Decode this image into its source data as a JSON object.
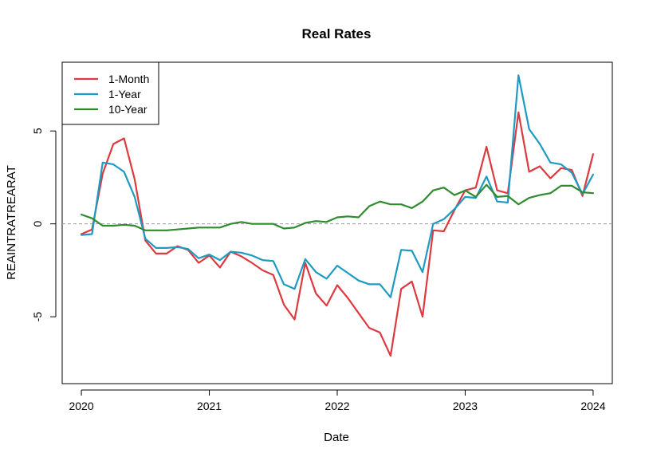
{
  "chart_data": {
    "type": "line",
    "title": "Real Rates",
    "xlabel": "Date",
    "ylabel": "REAINTRATREARAT",
    "xlim": [
      2019.85,
      2024.15
    ],
    "ylim": [
      -8.6,
      8.7
    ],
    "x_ticks": [
      {
        "value": 2020,
        "label": "2020"
      },
      {
        "value": 2021,
        "label": "2021"
      },
      {
        "value": 2022,
        "label": "2022"
      },
      {
        "value": 2023,
        "label": "2023"
      },
      {
        "value": 2024,
        "label": "2024"
      }
    ],
    "y_ticks": [
      {
        "value": -5,
        "label": "-5"
      },
      {
        "value": 0,
        "label": "0"
      },
      {
        "value": 5,
        "label": "5"
      }
    ],
    "reference_line": {
      "y": 0,
      "style": "dashed",
      "color": "#9a9a9a"
    },
    "legend": {
      "position": "top-left"
    },
    "grid": false,
    "x": [
      2020.0,
      2020.0833,
      2020.1667,
      2020.25,
      2020.3333,
      2020.4167,
      2020.5,
      2020.5833,
      2020.6667,
      2020.75,
      2020.8333,
      2020.9167,
      2021.0,
      2021.0833,
      2021.1667,
      2021.25,
      2021.3333,
      2021.4167,
      2021.5,
      2021.5833,
      2021.6667,
      2021.75,
      2021.8333,
      2021.9167,
      2022.0,
      2022.0833,
      2022.1667,
      2022.25,
      2022.3333,
      2022.4167,
      2022.5,
      2022.5833,
      2022.6667,
      2022.75,
      2022.8333,
      2022.9167,
      2023.0,
      2023.0833,
      2023.1667,
      2023.25,
      2023.3333,
      2023.4167,
      2023.5,
      2023.5833,
      2023.6667,
      2023.75,
      2023.8333,
      2023.9167,
      2024.0
    ],
    "series": [
      {
        "name": "1-Month",
        "color": "#dc3a3f",
        "values": [
          -0.55,
          -0.3,
          2.7,
          4.3,
          4.6,
          2.4,
          -0.9,
          -1.6,
          -1.6,
          -1.2,
          -1.4,
          -2.1,
          -1.7,
          -2.35,
          -1.5,
          -1.75,
          -2.1,
          -2.5,
          -2.75,
          -4.35,
          -5.15,
          -2.1,
          -3.75,
          -4.4,
          -3.3,
          -4.0,
          -4.8,
          -5.6,
          -5.85,
          -7.1,
          -3.5,
          -3.1,
          -5.0,
          -0.35,
          -0.4,
          0.75,
          1.8,
          1.95,
          4.15,
          1.8,
          1.65,
          6.0,
          2.8,
          3.1,
          2.45,
          3.0,
          2.9,
          1.5,
          3.75
        ]
      },
      {
        "name": "1-Year",
        "color": "#1e9ac2",
        "values": [
          -0.6,
          -0.55,
          3.3,
          3.2,
          2.8,
          1.45,
          -0.8,
          -1.3,
          -1.3,
          -1.25,
          -1.35,
          -1.85,
          -1.65,
          -1.95,
          -1.5,
          -1.55,
          -1.7,
          -1.95,
          -2.0,
          -3.25,
          -3.5,
          -1.9,
          -2.6,
          -2.95,
          -2.25,
          -2.65,
          -3.05,
          -3.25,
          -3.25,
          -3.95,
          -1.4,
          -1.45,
          -2.6,
          0.0,
          0.25,
          0.8,
          1.45,
          1.4,
          2.55,
          1.2,
          1.15,
          8.0,
          5.1,
          4.3,
          3.3,
          3.2,
          2.75,
          1.6,
          2.65
        ]
      },
      {
        "name": "10-Year",
        "color": "#2e8b2e",
        "values": [
          0.5,
          0.3,
          -0.1,
          -0.1,
          -0.05,
          -0.1,
          -0.35,
          -0.35,
          -0.35,
          -0.3,
          -0.25,
          -0.2,
          -0.2,
          -0.2,
          0.0,
          0.1,
          0.0,
          0.0,
          0.0,
          -0.25,
          -0.2,
          0.05,
          0.15,
          0.1,
          0.35,
          0.4,
          0.35,
          0.95,
          1.2,
          1.05,
          1.05,
          0.85,
          1.2,
          1.8,
          1.95,
          1.55,
          1.8,
          1.45,
          2.1,
          1.45,
          1.5,
          1.05,
          1.4,
          1.55,
          1.65,
          2.05,
          2.05,
          1.7,
          1.65
        ]
      }
    ]
  }
}
